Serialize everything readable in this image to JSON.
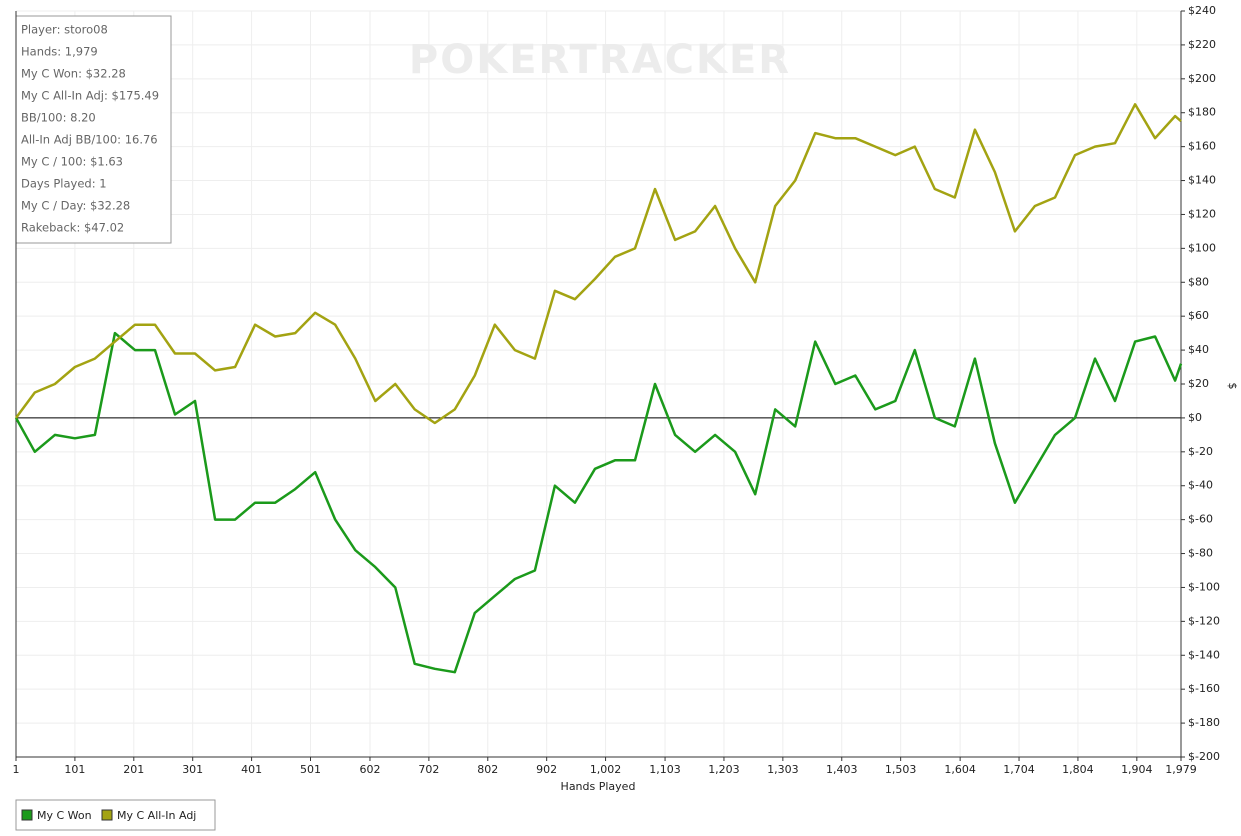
{
  "chart_data": {
    "type": "line",
    "watermark": "POKERTRACKER",
    "annotations": [
      "Player: storo08",
      "Hands: 1,979",
      "My C Won: $32.28",
      "My C All-In Adj: $175.49",
      "BB/100: 8.20",
      "All-In Adj BB/100: 16.76",
      "My C / 100: $1.63",
      "Days Played: 1",
      "My C / Day: $32.28",
      "Rakeback: $47.02"
    ],
    "x_label": "Hands Played",
    "y_label": "$",
    "xlim": [
      1,
      1979
    ],
    "ylim": [
      -200,
      240
    ],
    "grid": true,
    "legend": "bottom-left",
    "xticks": [
      1,
      101,
      201,
      301,
      401,
      501,
      602,
      702,
      802,
      902,
      {
        "value": 1002,
        "label": "1,002"
      },
      {
        "value": 1103,
        "label": "1,103"
      },
      {
        "value": 1203,
        "label": "1,203"
      },
      {
        "value": 1303,
        "label": "1,303"
      },
      {
        "value": 1403,
        "label": "1,403"
      },
      {
        "value": 1503,
        "label": "1,503"
      },
      {
        "value": 1604,
        "label": "1,604"
      },
      {
        "value": 1704,
        "label": "1,704"
      },
      {
        "value": 1804,
        "label": "1,804"
      },
      {
        "value": 1904,
        "label": "1,904"
      },
      {
        "value": 1979,
        "label": "1,979"
      }
    ],
    "yticks": [
      {
        "value": 240,
        "label": "$240"
      },
      {
        "value": 220,
        "label": "$220"
      },
      {
        "value": 200,
        "label": "$200"
      },
      {
        "value": 180,
        "label": "$180"
      },
      {
        "value": 160,
        "label": "$160"
      },
      {
        "value": 140,
        "label": "$140"
      },
      {
        "value": 120,
        "label": "$120"
      },
      {
        "value": 100,
        "label": "$100"
      },
      {
        "value": 80,
        "label": "$80"
      },
      {
        "value": 60,
        "label": "$60"
      },
      {
        "value": 40,
        "label": "$40"
      },
      {
        "value": 20,
        "label": "$20"
      },
      {
        "value": 0,
        "label": "$0"
      },
      {
        "value": -20,
        "label": "$-20"
      },
      {
        "value": -40,
        "label": "$-40"
      },
      {
        "value": -60,
        "label": "$-60"
      },
      {
        "value": -80,
        "label": "$-80"
      },
      {
        "value": -100,
        "label": "$-100"
      },
      {
        "value": -120,
        "label": "$-120"
      },
      {
        "value": -140,
        "label": "$-140"
      },
      {
        "value": -160,
        "label": "$-160"
      },
      {
        "value": -180,
        "label": "$-180"
      },
      {
        "value": -200,
        "label": "$-200"
      }
    ],
    "x": [
      1,
      33,
      67,
      101,
      135,
      169,
      203,
      237,
      271,
      305,
      339,
      373,
      407,
      441,
      475,
      509,
      543,
      577,
      611,
      645,
      678,
      712,
      746,
      780,
      814,
      848,
      882,
      916,
      950,
      984,
      1018,
      1052,
      1086,
      1120,
      1154,
      1188,
      1222,
      1256,
      1290,
      1324,
      1358,
      1392,
      1426,
      1460,
      1494,
      1527,
      1561,
      1595,
      1629,
      1663,
      1697,
      1731,
      1765,
      1799,
      1833,
      1867,
      1901,
      1935,
      1969,
      1979
    ],
    "series": [
      {
        "name": "My C Won",
        "color": "#1b9a1b",
        "values": [
          0,
          -20,
          -10,
          -12,
          -10,
          50,
          40,
          40,
          2,
          10,
          -60,
          -60,
          -50,
          -50,
          -42,
          -32,
          -60,
          -78,
          -88,
          -100,
          -145,
          -148,
          -150,
          -115,
          -105,
          -95,
          -90,
          -40,
          -50,
          -30,
          -25,
          -25,
          20,
          -10,
          -20,
          -10,
          -20,
          -45,
          5,
          -5,
          45,
          20,
          25,
          5,
          10,
          40,
          0,
          -5,
          35,
          -15,
          -50,
          -30,
          -10,
          0,
          35,
          10,
          45,
          48,
          22,
          32
        ]
      },
      {
        "name": "My C All-In Adj",
        "color": "#a3a312",
        "values": [
          0,
          15,
          20,
          30,
          35,
          45,
          55,
          55,
          38,
          38,
          28,
          30,
          55,
          48,
          50,
          62,
          55,
          35,
          10,
          20,
          5,
          -3,
          5,
          25,
          55,
          40,
          35,
          75,
          70,
          82,
          95,
          100,
          135,
          105,
          110,
          125,
          100,
          80,
          125,
          140,
          168,
          165,
          165,
          160,
          155,
          160,
          135,
          130,
          170,
          145,
          110,
          125,
          130,
          155,
          160,
          162,
          185,
          165,
          178,
          175
        ]
      }
    ]
  }
}
